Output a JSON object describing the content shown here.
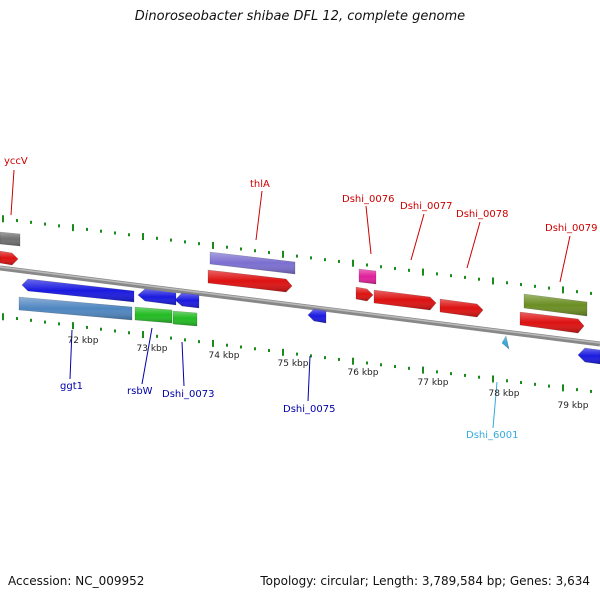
{
  "title": "Dinoroseobacter shibae DFL 12, complete genome",
  "accession_label": "Accession: NC_009952",
  "summary_label": "Topology: circular; Length: 3,789,584 bp; Genes: 3,634",
  "colors": {
    "backbone": "#8a8a8a",
    "tick": "#1a8a1a",
    "label_top": "#cc0000",
    "label_bottom": "#0000aa",
    "label_misc": "#33aadd",
    "kbp_text": "#222222"
  },
  "kbp_ticks": [
    "72 kbp",
    "73 kbp",
    "74 kbp",
    "75 kbp",
    "76 kbp",
    "77 kbp",
    "78 kbp",
    "79 kbp"
  ],
  "top_labels": [
    {
      "id": "label-yccv",
      "text": "yccV",
      "color_key": "label_top"
    },
    {
      "id": "label-thla",
      "text": "thlA",
      "color_key": "label_top"
    },
    {
      "id": "label-dshi-0076",
      "text": "Dshi_0076",
      "color_key": "label_top"
    },
    {
      "id": "label-dshi-0077",
      "text": "Dshi_0077",
      "color_key": "label_top"
    },
    {
      "id": "label-dshi-0078",
      "text": "Dshi_0078",
      "color_key": "label_top"
    },
    {
      "id": "label-dshi-0079",
      "text": "Dshi_0079",
      "color_key": "label_top"
    }
  ],
  "bottom_labels": [
    {
      "id": "label-ggt1",
      "text": "ggt1",
      "color_key": "label_bottom"
    },
    {
      "id": "label-rsbw",
      "text": "rsbW",
      "color_key": "label_bottom"
    },
    {
      "id": "label-dshi-0073",
      "text": "Dshi_0073",
      "color_key": "label_bottom"
    },
    {
      "id": "label-dshi-0075",
      "text": "Dshi_0075",
      "color_key": "label_bottom"
    },
    {
      "id": "label-dshi-6001",
      "text": "Dshi_6001",
      "color_key": "label_misc"
    }
  ],
  "features": [
    {
      "id": "feature-gray-left",
      "color": "#707070"
    },
    {
      "id": "feature-red-left",
      "color": "#dd1111"
    },
    {
      "id": "feature-thla-purple",
      "color": "#7b6fd0"
    },
    {
      "id": "feature-thla-red",
      "color": "#dd1111"
    },
    {
      "id": "feature-dshi-0076-pink",
      "color": "#e0209a"
    },
    {
      "id": "feature-red-small",
      "color": "#dd1111"
    },
    {
      "id": "feature-dshi-0077-red",
      "color": "#dd1111"
    },
    {
      "id": "feature-dshi-0078-red",
      "color": "#dd1111"
    },
    {
      "id": "feature-dshi-0079-olive",
      "color": "#6b8e23"
    },
    {
      "id": "feature-dshi-0079-red",
      "color": "#dd1111"
    },
    {
      "id": "feature-ggt1-blue",
      "color": "#1a1ae0"
    },
    {
      "id": "feature-ggt1-steel",
      "color": "#4f86c0"
    },
    {
      "id": "feature-rsbw-blue",
      "color": "#1a1ae0"
    },
    {
      "id": "feature-rsbw-green",
      "color": "#22bb22"
    },
    {
      "id": "feature-dshi-0073-blue",
      "color": "#1a1ae0"
    },
    {
      "id": "feature-dshi-0073-green",
      "color": "#22bb22"
    },
    {
      "id": "feature-dshi-0075-blue",
      "color": "#1a1ae0"
    },
    {
      "id": "feature-dshi-6001-cyan",
      "color": "#33aadd"
    },
    {
      "id": "feature-blue-right",
      "color": "#1a1ae0"
    }
  ]
}
